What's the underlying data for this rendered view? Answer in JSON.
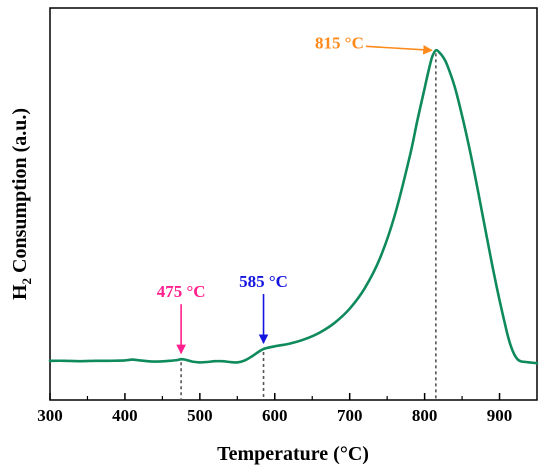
{
  "chart_data": {
    "type": "line",
    "xlabel": "Temperature (°C)",
    "ylabel": {
      "prefix": "H",
      "subscript": "2",
      "rest": " Consumption (a.u.)"
    },
    "xlim": [
      300,
      950
    ],
    "ylim": [
      0,
      1
    ],
    "xticks": [
      "300",
      "400",
      "500",
      "600",
      "700",
      "800",
      "900"
    ],
    "y_tick_labels": false,
    "grid": false,
    "series": [
      {
        "color": "#0f8a5c",
        "x": [
          300,
          320,
          340,
          360,
          380,
          400,
          410,
          420,
          440,
          460,
          470,
          475,
          480,
          490,
          500,
          510,
          520,
          530,
          540,
          550,
          560,
          570,
          580,
          585,
          590,
          600,
          620,
          640,
          660,
          680,
          700,
          720,
          740,
          760,
          780,
          790,
          800,
          805,
          810,
          815,
          820,
          825,
          830,
          840,
          850,
          860,
          870,
          880,
          890,
          900,
          910,
          915,
          920,
          925,
          930,
          935,
          940,
          950
        ],
        "y": [
          0.1,
          0.1,
          0.099,
          0.1,
          0.1,
          0.101,
          0.103,
          0.101,
          0.098,
          0.1,
          0.102,
          0.104,
          0.103,
          0.098,
          0.096,
          0.097,
          0.099,
          0.099,
          0.097,
          0.096,
          0.101,
          0.112,
          0.125,
          0.13,
          0.133,
          0.137,
          0.144,
          0.155,
          0.172,
          0.197,
          0.233,
          0.285,
          0.36,
          0.47,
          0.62,
          0.71,
          0.795,
          0.838,
          0.875,
          0.892,
          0.886,
          0.874,
          0.855,
          0.8,
          0.725,
          0.64,
          0.545,
          0.445,
          0.347,
          0.255,
          0.172,
          0.138,
          0.115,
          0.102,
          0.098,
          0.097,
          0.096,
          0.094
        ]
      }
    ],
    "annotations": [
      {
        "text": "475 °C",
        "x": 475,
        "color": "#ff1f8e",
        "arrow": "vertical"
      },
      {
        "text": "585 °C",
        "x": 585,
        "color": "#1515e0",
        "arrow": "vertical"
      },
      {
        "text": "815 °C",
        "x": 815,
        "color": "#ff8a1c",
        "arrow": "horizontal"
      }
    ]
  }
}
